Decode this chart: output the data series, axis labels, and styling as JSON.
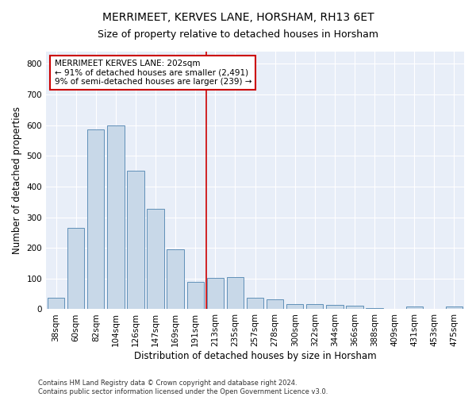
{
  "title": "MERRIMEET, KERVES LANE, HORSHAM, RH13 6ET",
  "subtitle": "Size of property relative to detached houses in Horsham",
  "xlabel": "Distribution of detached houses by size in Horsham",
  "ylabel": "Number of detached properties",
  "categories": [
    "38sqm",
    "60sqm",
    "82sqm",
    "104sqm",
    "126sqm",
    "147sqm",
    "169sqm",
    "191sqm",
    "213sqm",
    "235sqm",
    "257sqm",
    "278sqm",
    "300sqm",
    "322sqm",
    "344sqm",
    "366sqm",
    "388sqm",
    "409sqm",
    "431sqm",
    "453sqm",
    "475sqm"
  ],
  "values": [
    37,
    265,
    585,
    600,
    452,
    328,
    195,
    90,
    102,
    105,
    37,
    32,
    17,
    17,
    15,
    11,
    5,
    0,
    8,
    0,
    8
  ],
  "bar_color": "#c8d8e8",
  "bar_edge_color": "#6090b8",
  "vline_color": "#cc0000",
  "vline_x_index": 7.55,
  "annotation_text": "MERRIMEET KERVES LANE: 202sqm\n← 91% of detached houses are smaller (2,491)\n9% of semi-detached houses are larger (239) →",
  "annotation_box_color": "#ffffff",
  "annotation_box_edge": "#cc0000",
  "ylim": [
    0,
    840
  ],
  "yticks": [
    0,
    100,
    200,
    300,
    400,
    500,
    600,
    700,
    800
  ],
  "background_color": "#e8eef8",
  "footer_text": "Contains HM Land Registry data © Crown copyright and database right 2024.\nContains public sector information licensed under the Open Government Licence v3.0.",
  "title_fontsize": 10,
  "subtitle_fontsize": 9,
  "axis_label_fontsize": 8.5,
  "tick_fontsize": 7.5,
  "footer_fontsize": 6
}
